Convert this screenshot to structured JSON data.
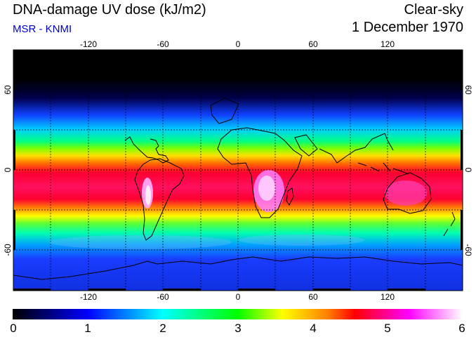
{
  "header": {
    "title": "DNA-damage UV dose (kJ/m2)",
    "subtitle": "MSR - KNMI",
    "sky_condition": "Clear-sky",
    "date": "1 December 1970"
  },
  "map": {
    "projection": "equirectangular",
    "lon_range": [
      -180,
      180
    ],
    "lat_range": [
      -90,
      90
    ],
    "lon_ticks": [
      "-120",
      "-60",
      "0",
      "60",
      "120"
    ],
    "lat_ticks": [
      "60",
      "0",
      "-60"
    ],
    "gridlines": "dashed",
    "coastlines": true,
    "field": "clear-sky daily DNA-damage UV dose",
    "pattern": "high values in southern tropics/subtropics, near zero in northern high latitudes (polar night)",
    "hotspots": [
      "Andes / Altiplano",
      "southern Africa",
      "Australia"
    ]
  },
  "colorbar": {
    "min": 0,
    "max": 6,
    "labels": [
      "0",
      "1",
      "2",
      "3",
      "4",
      "5",
      "6"
    ],
    "colors": [
      "#000000",
      "#0000ff",
      "#00ffff",
      "#00ff00",
      "#ffff00",
      "#ff0000",
      "#ff00ff",
      "#ffffff"
    ]
  }
}
